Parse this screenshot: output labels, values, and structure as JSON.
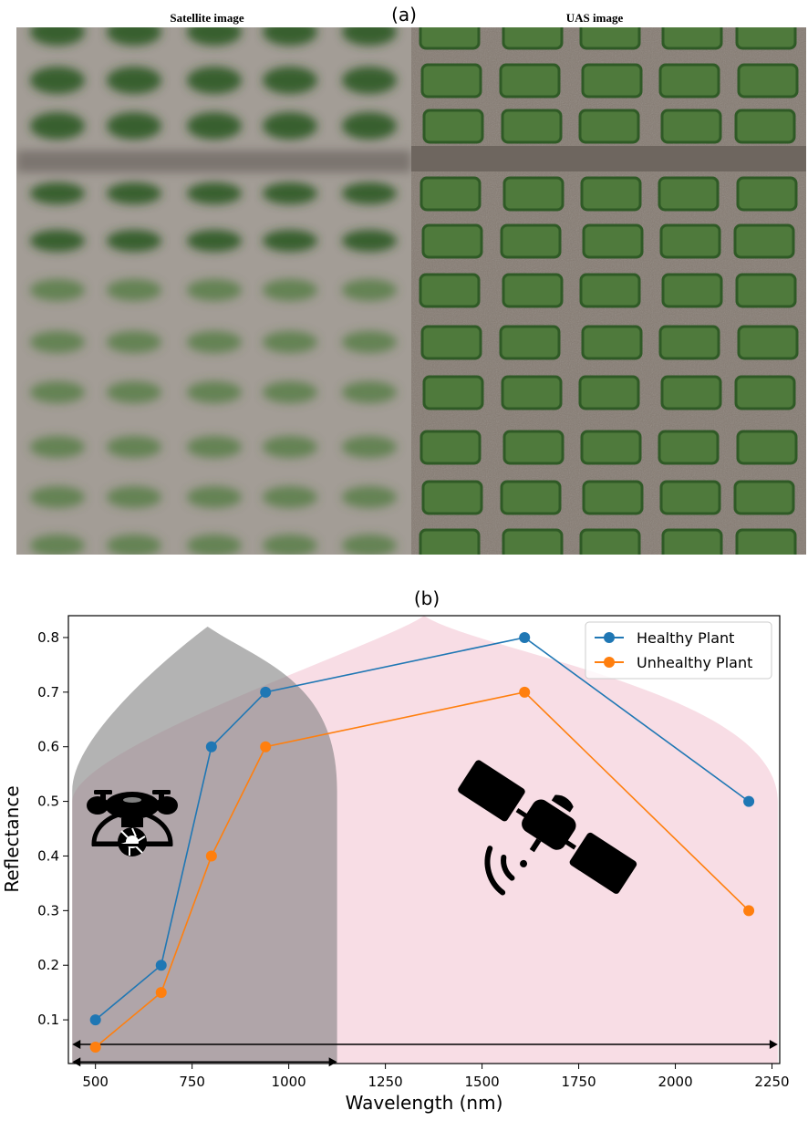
{
  "panel_a": {
    "label": "(a)",
    "left_title": "Satellite image",
    "right_title": "UAS image",
    "colors": {
      "soil": "#8d857d",
      "crop": "#4f7a3c",
      "crop_dark": "#2f5a26",
      "haze": "#b8b1a8"
    }
  },
  "panel_b": {
    "label": "(b)"
  },
  "chart_data": {
    "type": "line",
    "title": "(b)",
    "xlabel": "Wavelength (nm)",
    "ylabel": "Reflectance",
    "xlim": [
      430,
      2270
    ],
    "ylim": [
      0.02,
      0.84
    ],
    "xticks": [
      500,
      750,
      1000,
      1250,
      1500,
      1750,
      2000,
      2250
    ],
    "yticks": [
      0.1,
      0.2,
      0.3,
      0.4,
      0.5,
      0.6,
      0.7,
      0.8
    ],
    "grid": false,
    "legend_position": "top-right",
    "series": [
      {
        "name": "Healthy Plant",
        "color": "#1f77b4",
        "x": [
          500,
          670,
          800,
          940,
          1610,
          2190
        ],
        "y": [
          0.1,
          0.2,
          0.6,
          0.7,
          0.8,
          0.5
        ]
      },
      {
        "name": "Unhealthy Plant",
        "color": "#ff7f0e",
        "x": [
          500,
          670,
          800,
          940,
          1610,
          2190
        ],
        "y": [
          0.05,
          0.15,
          0.4,
          0.6,
          0.7,
          0.3
        ]
      }
    ],
    "shaded_regions": [
      {
        "id": "uas-range",
        "color": "#808080",
        "opacity": 0.6,
        "x_range": [
          440,
          1125
        ],
        "peak_x": 790,
        "peak_y": 0.82,
        "icon": "drone-icon"
      },
      {
        "id": "satellite-range",
        "color": "#f3c6d3",
        "opacity": 0.6,
        "x_range": [
          440,
          2265
        ],
        "peak_x": 1350,
        "peak_y": 0.84,
        "icon": "satellite-icon"
      }
    ],
    "arrows": [
      {
        "id": "satellite-arrow",
        "x_range": [
          440,
          2265
        ],
        "y": 0.055
      },
      {
        "id": "uas-arrow",
        "x_range": [
          440,
          1125
        ],
        "y": 0.023
      }
    ]
  }
}
